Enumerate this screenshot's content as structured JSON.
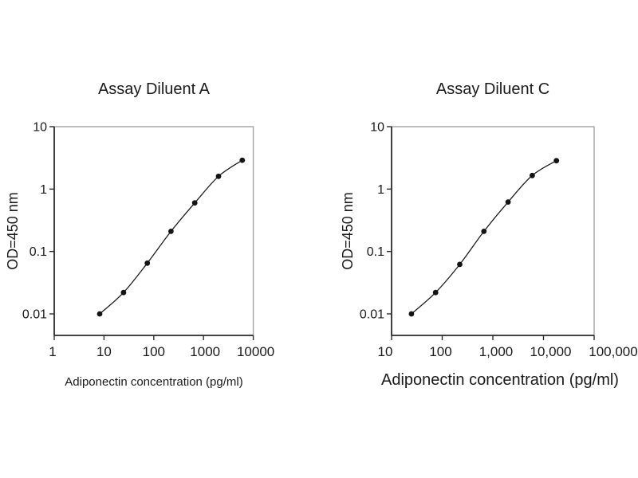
{
  "figure": {
    "background": "#ffffff",
    "text_color": "#1a1a1a",
    "curve_color": "#1c1c1c",
    "marker_color": "#141414",
    "axis_color": "#2e2e2e",
    "plot_border_color": "#a3a3a3"
  },
  "chart_data": [
    {
      "type": "line",
      "title": "Assay Diluent A",
      "xlabel": "Adiponectin concentration (pg/ml)",
      "ylabel": "OD=450 nm",
      "xscale": "log",
      "yscale": "log",
      "xlim": [
        1,
        10000
      ],
      "ylim": [
        0.01,
        10
      ],
      "grid": false,
      "legend": null,
      "marker": "filled-circle",
      "x": [
        8.2,
        24.7,
        74.1,
        222,
        667,
        2000,
        6000
      ],
      "y": [
        0.01,
        0.022,
        0.065,
        0.21,
        0.6,
        1.6,
        2.9
      ],
      "x_tick_values": [
        1,
        10,
        100,
        1000,
        10000
      ],
      "x_tick_labels": [
        "1",
        "10",
        "100",
        "1000",
        "10000"
      ],
      "y_tick_values": [
        10,
        1,
        0.1,
        0.01
      ],
      "y_tick_labels": [
        "10",
        "1",
        "0.1",
        "0.01"
      ]
    },
    {
      "type": "line",
      "title": "Assay Diluent C",
      "xlabel": "Adiponectin concentration (pg/ml)",
      "ylabel": "OD=450 nm",
      "xscale": "log",
      "yscale": "log",
      "xlim": [
        10,
        100000
      ],
      "ylim": [
        0.01,
        10
      ],
      "grid": false,
      "legend": null,
      "marker": "filled-circle",
      "x": [
        24.7,
        74.1,
        222,
        667,
        2000,
        6000,
        18000
      ],
      "y": [
        0.01,
        0.022,
        0.062,
        0.21,
        0.62,
        1.65,
        2.85
      ],
      "x_tick_values": [
        10,
        100,
        1000,
        10000,
        100000
      ],
      "x_tick_labels": [
        "10",
        "100",
        "1,000",
        "10,000",
        "100,000"
      ],
      "y_tick_values": [
        10,
        1,
        0.1,
        0.01
      ],
      "y_tick_labels": [
        "10",
        "1",
        "0.1",
        "0.01"
      ]
    }
  ]
}
